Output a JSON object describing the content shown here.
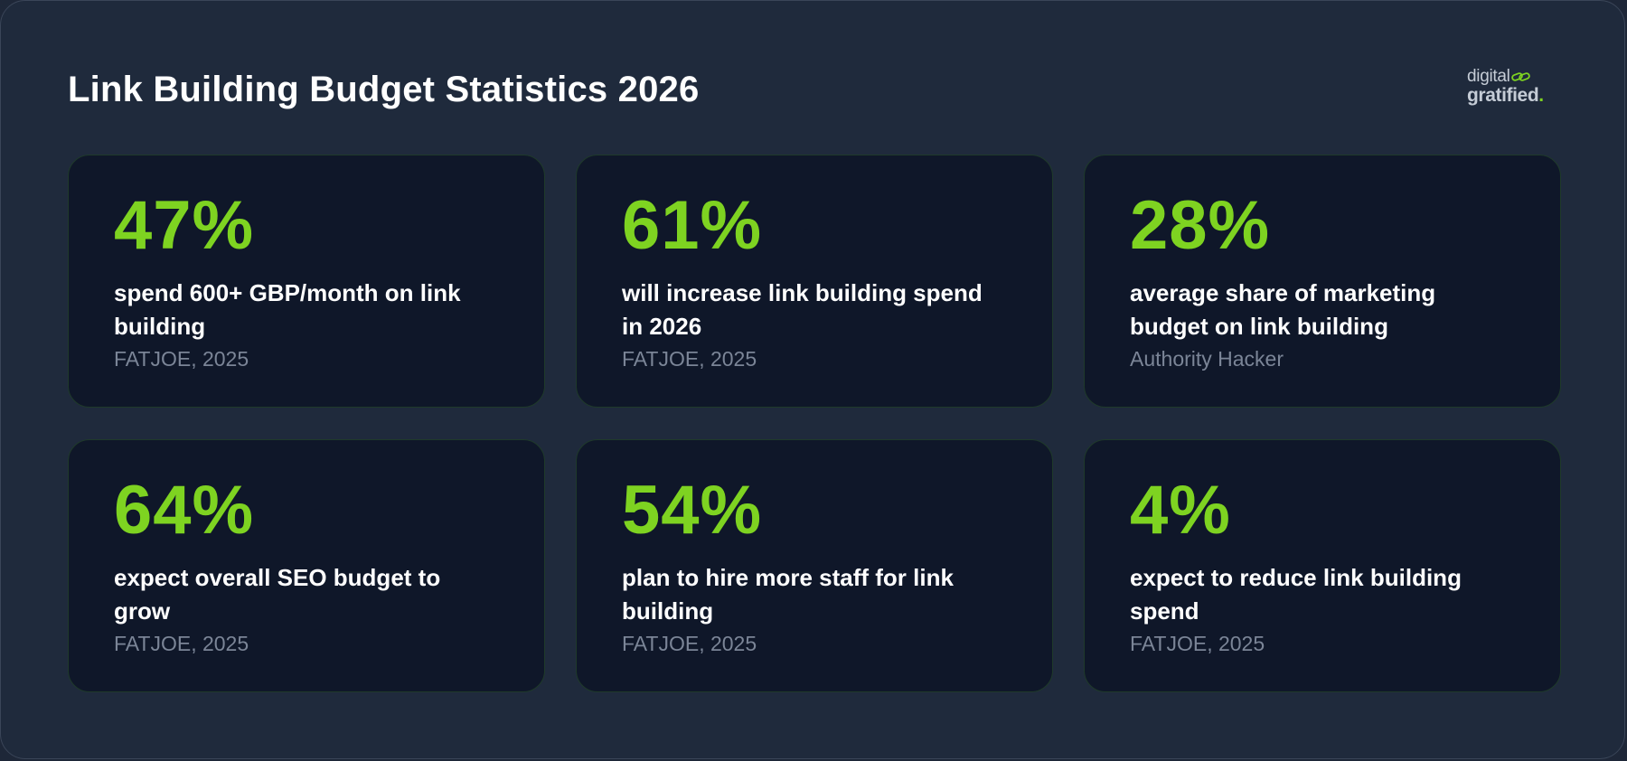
{
  "header": {
    "title": "Link Building Budget Statistics 2026"
  },
  "logo": {
    "line1": "digital",
    "line2": "gratified",
    "dot": ".",
    "accent_color": "#7ed321",
    "icon": "link-icon"
  },
  "colors": {
    "background": "#1f2a3c",
    "card": "#0f1729",
    "accent": "#7ed321",
    "text": "#ffffff",
    "muted": "#7b8597"
  },
  "stats": [
    {
      "value": "47%",
      "description": "spend 600+ GBP/month on link building",
      "source": "FATJOE, 2025"
    },
    {
      "value": "61%",
      "description": "will increase link building spend in 2026",
      "source": "FATJOE, 2025"
    },
    {
      "value": "28%",
      "description": "average share of marketing budget on link building",
      "source": "Authority Hacker"
    },
    {
      "value": "64%",
      "description": "expect overall SEO budget to grow",
      "source": "FATJOE, 2025"
    },
    {
      "value": "54%",
      "description": "plan to hire more staff for link building",
      "source": "FATJOE, 2025"
    },
    {
      "value": "4%",
      "description": "expect to reduce link building spend",
      "source": "FATJOE, 2025"
    }
  ]
}
